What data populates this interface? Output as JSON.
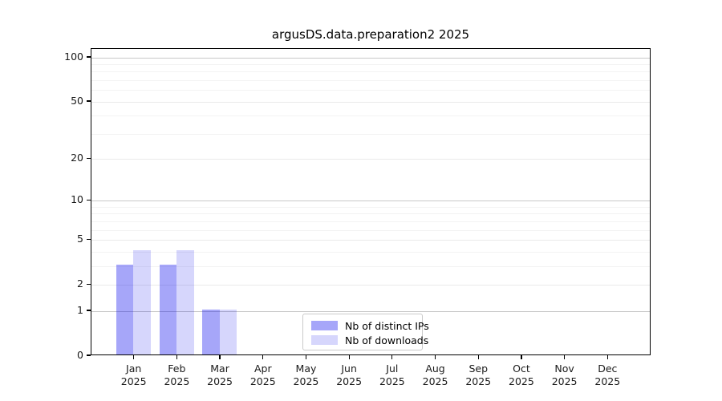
{
  "title": "argusDS.data.preparation2 2025",
  "legend": {
    "items": [
      {
        "label": "Nb of distinct IPs",
        "color": "rgba(0,0,238,0.35)"
      },
      {
        "label": "Nb of downloads",
        "color": "rgba(0,0,238,0.16)"
      }
    ]
  },
  "axes": {
    "y_ticks": [
      0,
      1,
      2,
      5,
      10,
      20,
      50,
      100
    ],
    "y_scale": "log1p",
    "x_tick_labels": [
      {
        "month": "Jan",
        "year": "2025"
      },
      {
        "month": "Feb",
        "year": "2025"
      },
      {
        "month": "Mar",
        "year": "2025"
      },
      {
        "month": "Apr",
        "year": "2025"
      },
      {
        "month": "May",
        "year": "2025"
      },
      {
        "month": "Jun",
        "year": "2025"
      },
      {
        "month": "Jul",
        "year": "2025"
      },
      {
        "month": "Aug",
        "year": "2025"
      },
      {
        "month": "Sep",
        "year": "2025"
      },
      {
        "month": "Oct",
        "year": "2025"
      },
      {
        "month": "Nov",
        "year": "2025"
      },
      {
        "month": "Dec",
        "year": "2025"
      }
    ]
  },
  "chart_data": {
    "type": "bar",
    "title": "argusDS.data.preparation2 2025",
    "categories": [
      "Jan 2025",
      "Feb 2025",
      "Mar 2025",
      "Apr 2025",
      "May 2025",
      "Jun 2025",
      "Jul 2025",
      "Aug 2025",
      "Sep 2025",
      "Oct 2025",
      "Nov 2025",
      "Dec 2025"
    ],
    "series": [
      {
        "name": "Nb of distinct IPs",
        "values": [
          3,
          3,
          1,
          0,
          0,
          0,
          0,
          0,
          0,
          0,
          0,
          0
        ],
        "color": "rgba(0,0,238,0.35)"
      },
      {
        "name": "Nb of downloads",
        "values": [
          4,
          4,
          1,
          0,
          0,
          0,
          0,
          0,
          0,
          0,
          0,
          0
        ],
        "color": "rgba(0,0,238,0.16)"
      }
    ],
    "xlabel": "",
    "ylabel": "",
    "yscale": "log1p",
    "ylim": [
      0,
      100
    ],
    "yticks": [
      0,
      1,
      2,
      5,
      10,
      20,
      50,
      100
    ],
    "grid": true,
    "legend_position": "lower center"
  }
}
